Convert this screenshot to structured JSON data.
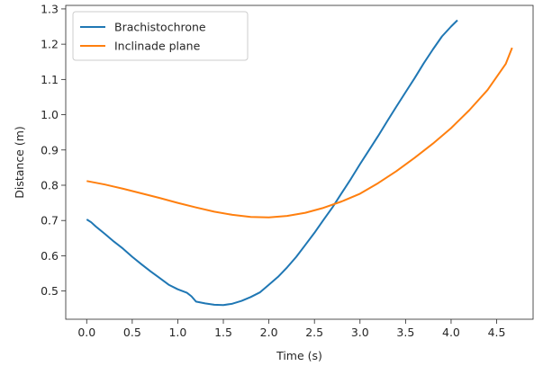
{
  "chart_data": {
    "type": "line",
    "xlabel": "Time (s)",
    "ylabel": "Distance (m)",
    "xlim": [
      -0.23,
      4.9
    ],
    "ylim": [
      0.42,
      1.31
    ],
    "x_ticks": [
      "0.0",
      "0.5",
      "1.0",
      "1.5",
      "2.0",
      "2.5",
      "3.0",
      "3.5",
      "4.0",
      "4.5"
    ],
    "y_ticks": [
      "0.5",
      "0.6",
      "0.7",
      "0.8",
      "0.9",
      "1.0",
      "1.1",
      "1.2",
      "1.3"
    ],
    "grid": false,
    "legend_position": "top-left",
    "series": [
      {
        "name": "Brachistochrone",
        "color": "#1f77b4",
        "x": [
          0.0,
          0.05,
          0.1,
          0.2,
          0.3,
          0.4,
          0.5,
          0.6,
          0.7,
          0.8,
          0.9,
          1.0,
          1.1,
          1.15,
          1.2,
          1.3,
          1.4,
          1.5,
          1.6,
          1.7,
          1.8,
          1.9,
          2.0,
          2.1,
          2.2,
          2.3,
          2.4,
          2.5,
          2.6,
          2.7,
          2.8,
          2.9,
          3.0,
          3.1,
          3.2,
          3.3,
          3.4,
          3.5,
          3.6,
          3.7,
          3.8,
          3.9,
          4.0,
          4.07
        ],
        "values": [
          0.703,
          0.695,
          0.683,
          0.662,
          0.64,
          0.62,
          0.597,
          0.576,
          0.556,
          0.537,
          0.518,
          0.505,
          0.495,
          0.485,
          0.47,
          0.465,
          0.461,
          0.46,
          0.464,
          0.472,
          0.483,
          0.496,
          0.518,
          0.54,
          0.567,
          0.597,
          0.631,
          0.665,
          0.702,
          0.738,
          0.778,
          0.818,
          0.86,
          0.9,
          0.94,
          0.982,
          1.023,
          1.064,
          1.104,
          1.146,
          1.185,
          1.222,
          1.25,
          1.268
        ]
      },
      {
        "name": "Inclinade plane",
        "color": "#ff7f0e",
        "x": [
          0.0,
          0.2,
          0.4,
          0.6,
          0.8,
          1.0,
          1.2,
          1.4,
          1.6,
          1.8,
          2.0,
          2.2,
          2.4,
          2.6,
          2.8,
          3.0,
          3.2,
          3.4,
          3.6,
          3.8,
          4.0,
          4.2,
          4.4,
          4.6,
          4.67
        ],
        "values": [
          0.812,
          0.802,
          0.79,
          0.777,
          0.764,
          0.75,
          0.737,
          0.725,
          0.716,
          0.71,
          0.709,
          0.713,
          0.722,
          0.736,
          0.754,
          0.776,
          0.806,
          0.84,
          0.878,
          0.918,
          0.962,
          1.013,
          1.07,
          1.144,
          1.19
        ]
      }
    ]
  }
}
